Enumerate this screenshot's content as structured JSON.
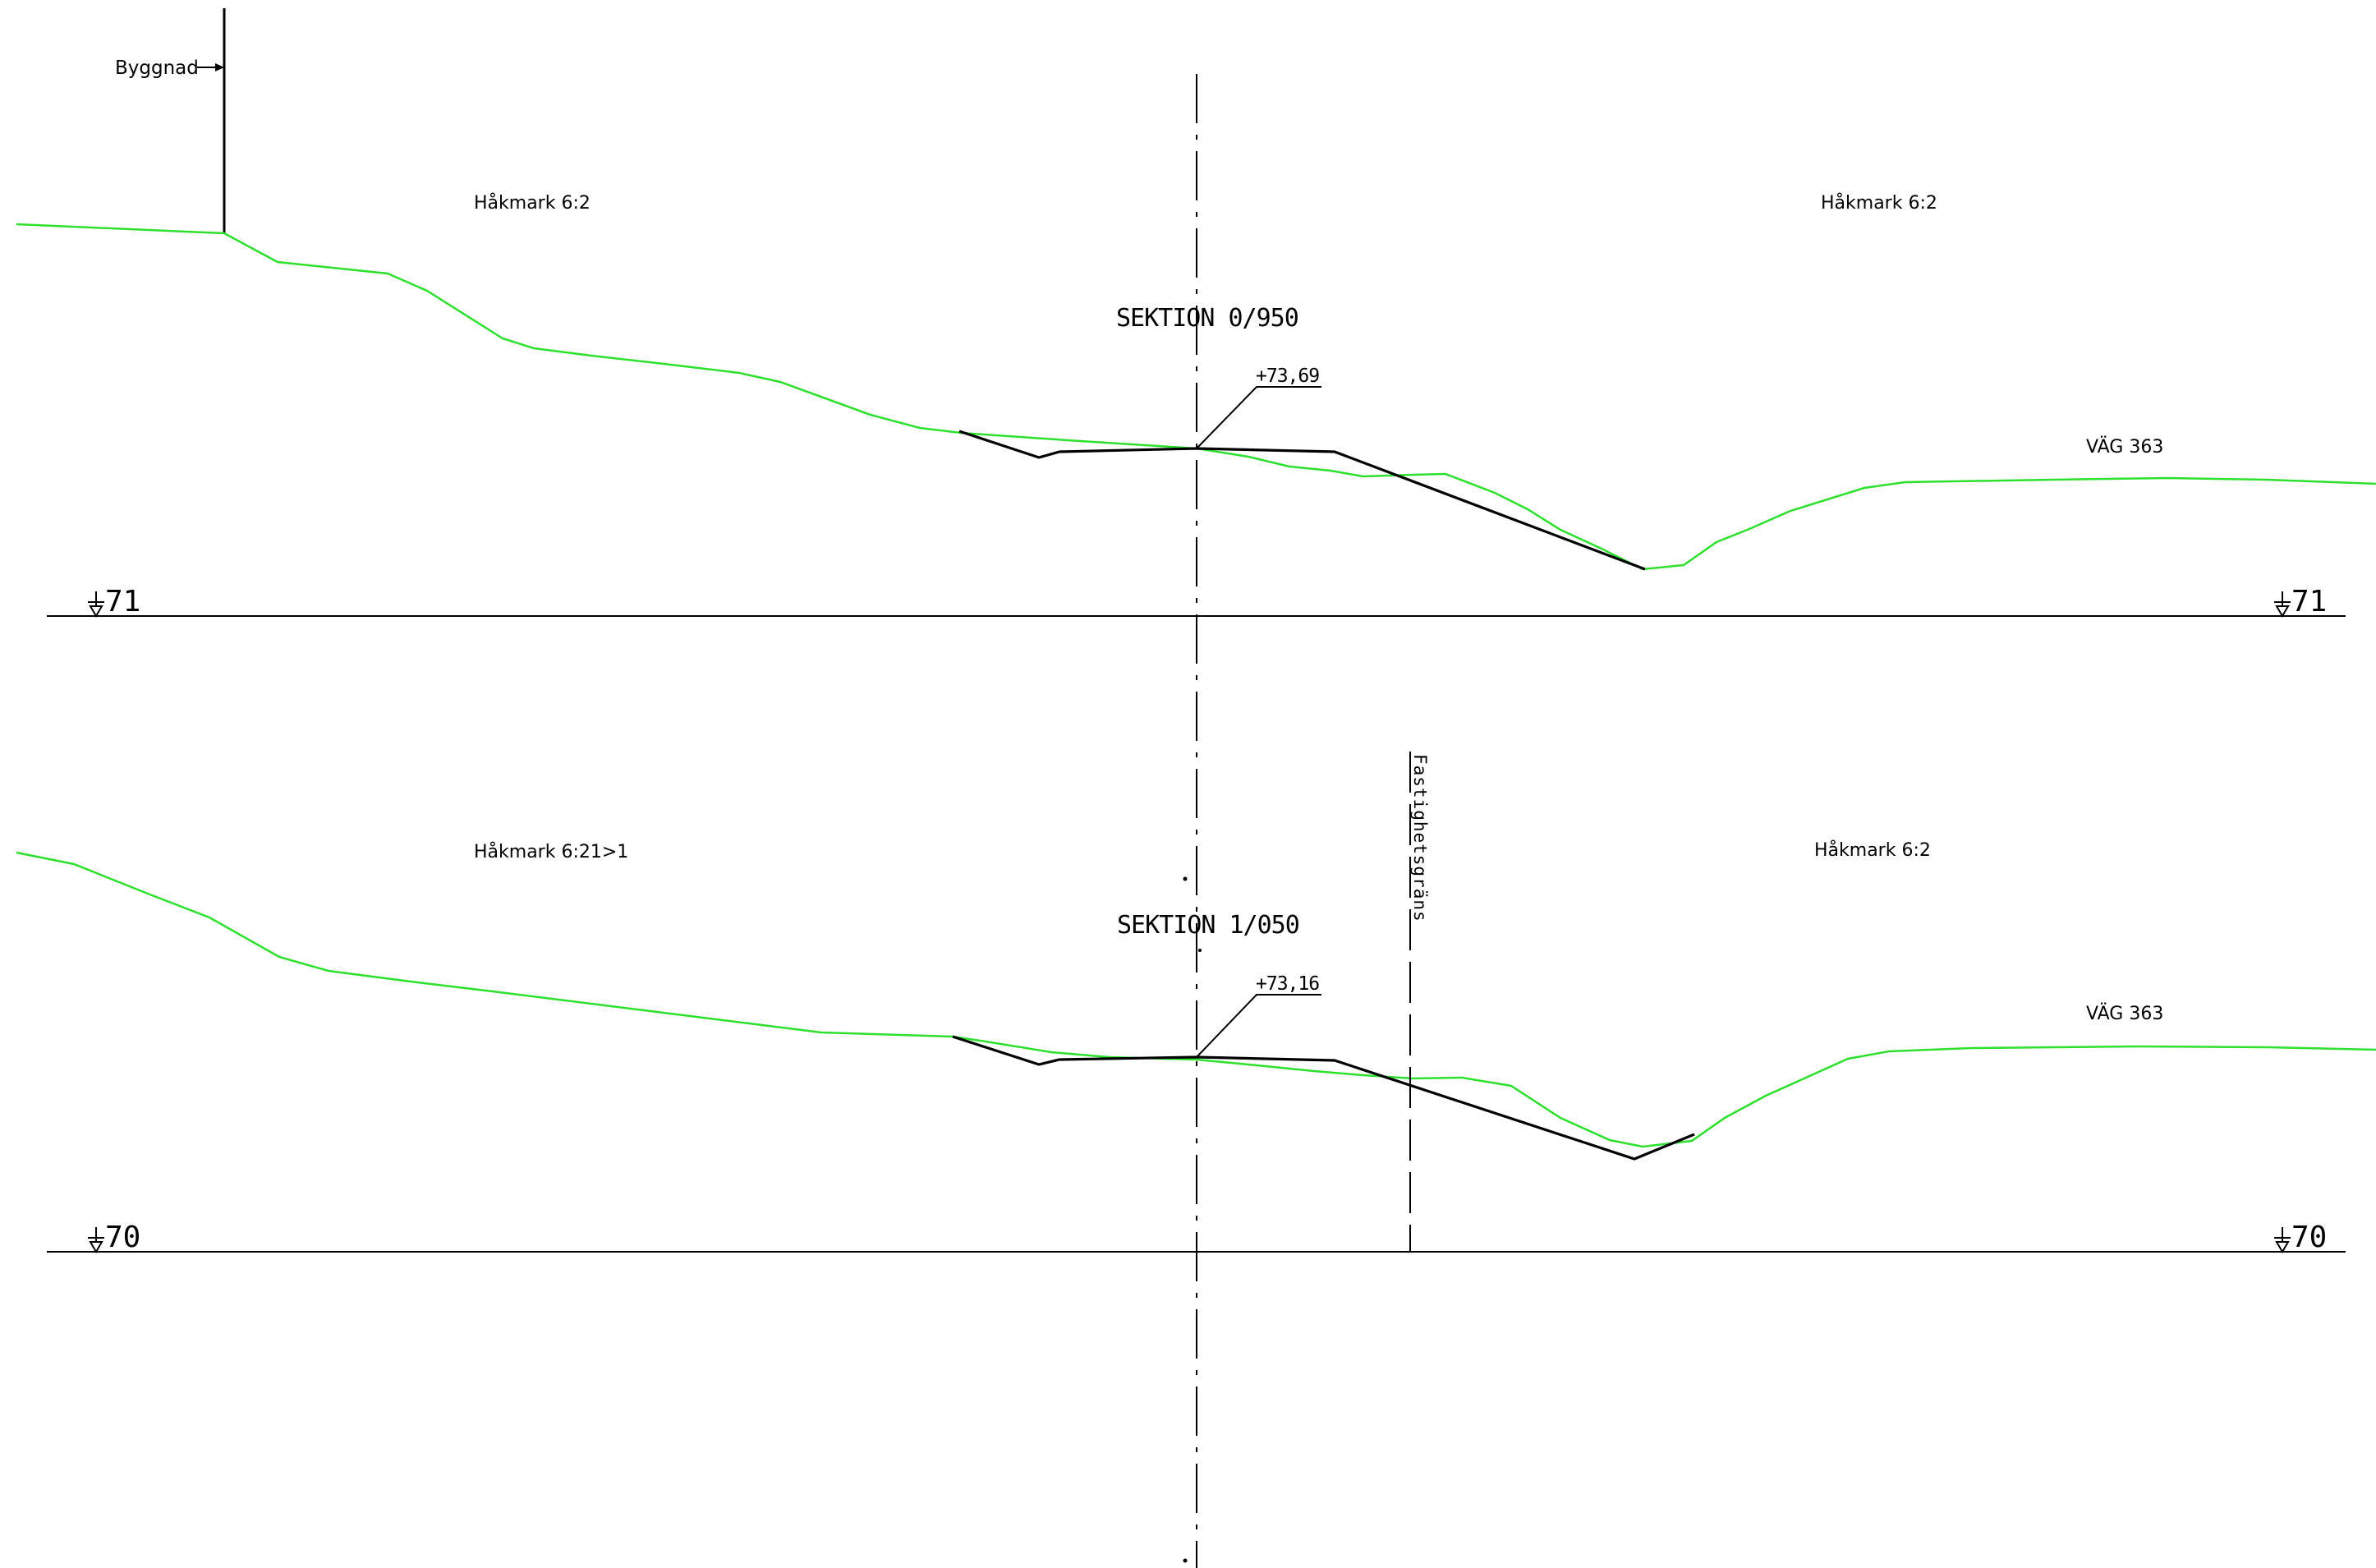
{
  "building_label": "Byggnad",
  "colors": {
    "terrain": "#2ee02e",
    "road": "#000000",
    "background": "#ffffff"
  },
  "sections": [
    {
      "title": "SEKTION 0/950",
      "elevation_label": "+73,69",
      "property_left": "Håkmark 6:2",
      "property_right": "Håkmark 6:2",
      "road_label": "VÄG 363",
      "datum_label": "71"
    },
    {
      "title": "SEKTION 1/050",
      "elevation_label": "+73,16",
      "property_left": "Håkmark 6:21>1",
      "property_right": "Håkmark 6:2",
      "road_label": "VÄG 363",
      "datum_label": "70",
      "boundary_label": "Fastighetsgräns"
    }
  ]
}
